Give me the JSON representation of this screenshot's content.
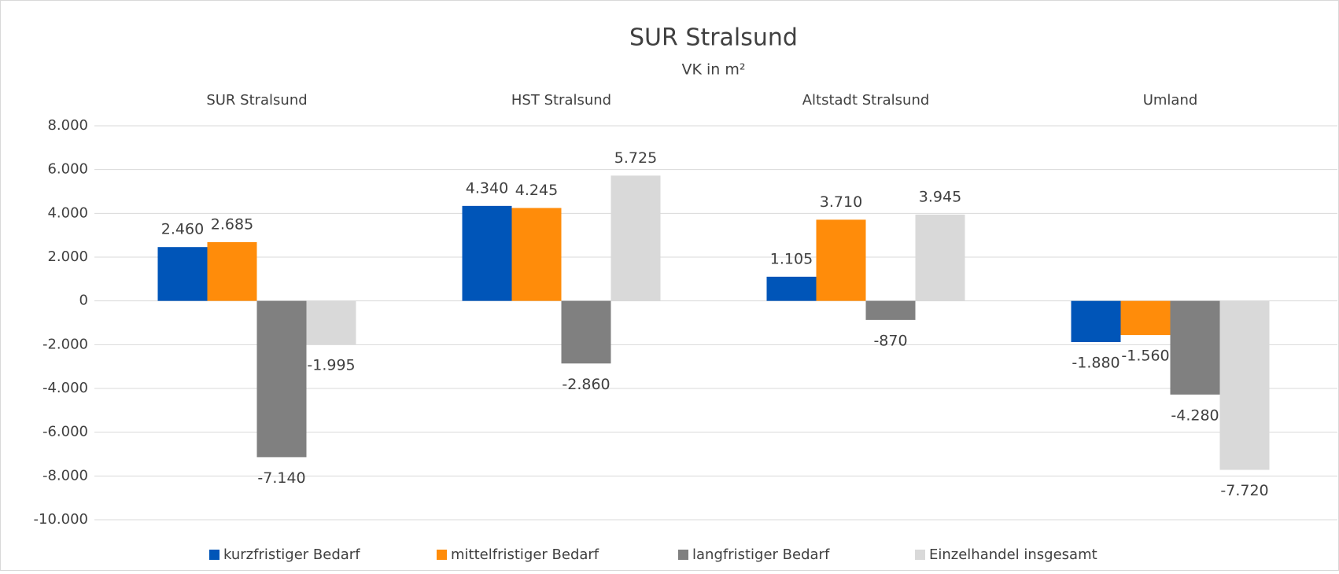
{
  "chart_data": {
    "type": "bar",
    "title": "SUR Stralsund",
    "subtitle": "VK in m²",
    "categories": [
      "SUR Stralsund",
      "HST Stralsund",
      "Altstadt Stralsund",
      "Umland"
    ],
    "series": [
      {
        "name": "kurzfristiger Bedarf",
        "color": "#0055b8",
        "values": [
          2460,
          4340,
          1105,
          -1880
        ],
        "value_labels": [
          "2.460",
          "4.340",
          "1.105",
          "-1.880"
        ]
      },
      {
        "name": "mittelfristiger Bedarf",
        "color": "#ff8c0a",
        "values": [
          2685,
          4245,
          3710,
          -1560
        ],
        "value_labels": [
          "2.685",
          "4.245",
          "3.710",
          "-1.560"
        ]
      },
      {
        "name": "langfristiger Bedarf",
        "color": "#808080",
        "values": [
          -7140,
          -2860,
          -870,
          -4280
        ],
        "value_labels": [
          "-7.140",
          "-2.860",
          "-870",
          "-4.280"
        ]
      },
      {
        "name": "Einzelhandel insgesamt",
        "color": "#d9d9d9",
        "values": [
          -1995,
          5725,
          3945,
          -7720
        ],
        "value_labels": [
          "-1.995",
          "5.725",
          "3.945",
          "-7.720"
        ]
      }
    ],
    "ylim": [
      -10000,
      8000
    ],
    "yticks": [
      {
        "value": -10000,
        "label": "-10.000"
      },
      {
        "value": -8000,
        "label": "-8.000"
      },
      {
        "value": -6000,
        "label": "-6.000"
      },
      {
        "value": -4000,
        "label": "-4.000"
      },
      {
        "value": -2000,
        "label": "-2.000"
      },
      0,
      {
        "value": 2000,
        "label": "2.000"
      },
      {
        "value": 4000,
        "label": "4.000"
      },
      {
        "value": 6000,
        "label": "6.000"
      },
      {
        "value": 8000,
        "label": "8.000"
      }
    ],
    "grid": true,
    "legend": "bottom"
  }
}
